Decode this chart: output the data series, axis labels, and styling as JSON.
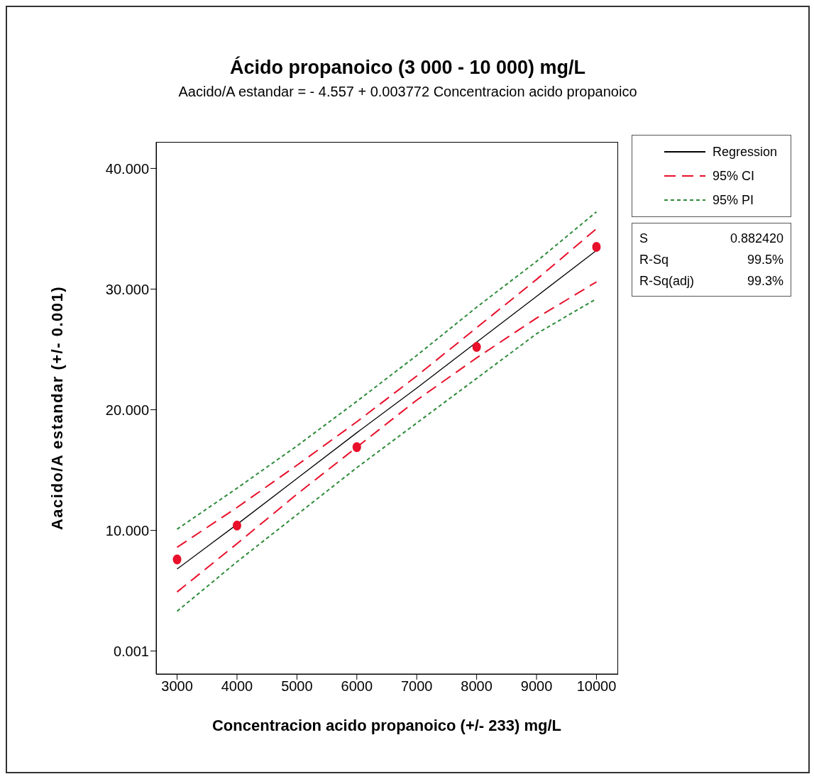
{
  "chart_data": {
    "type": "line",
    "title": "Ácido propanoico (3 000 - 10 000) mg/L",
    "subtitle": "Aacido/A estandar =  - 4.557 + 0.003772 Concentracion acido propanoico",
    "xlabel": "Concentracion acido propanoico (+/- 233) mg/L",
    "ylabel": "Aacido/A estandar (+/- 0.001)",
    "xlim": [
      2650,
      10350
    ],
    "xticks": [
      3000,
      4000,
      5000,
      6000,
      7000,
      8000,
      9000,
      10000
    ],
    "ylim": [
      -1.9,
      42.2
    ],
    "yticks": [
      0.001,
      {
        "value": 10,
        "label": "10.000"
      },
      {
        "value": 20,
        "label": "20.000"
      },
      {
        "value": 30,
        "label": "30.000"
      },
      {
        "value": 40,
        "label": "40.000"
      }
    ],
    "legend": "top right",
    "marker": "none",
    "series": [
      {
        "name": "Regression",
        "color": "#000000",
        "line_style": "solid",
        "x": [
          3000,
          4000,
          5000,
          6000,
          7000,
          8000,
          9000,
          10000
        ],
        "values": [
          6.8,
          10.5,
          14.3,
          18.1,
          21.8,
          25.6,
          29.4,
          33.2
        ]
      },
      {
        "name": "95% CI",
        "color": "#e8102a",
        "line_style": "dashed",
        "x": [
          3000,
          4000,
          5000,
          6000,
          7000,
          8000,
          9000,
          10000
        ],
        "values": [
          8.6,
          11.9,
          15.4,
          19.0,
          22.8,
          26.8,
          30.8,
          35.0
        ]
      },
      {
        "color": "#e8102a",
        "line_style": "dashed",
        "x": [
          3000,
          4000,
          5000,
          6000,
          7000,
          8000,
          9000,
          10000
        ],
        "values": [
          4.9,
          8.9,
          13.0,
          16.9,
          20.8,
          24.3,
          27.6,
          30.6
        ]
      },
      {
        "name": "95% PI",
        "color": "#2e8b3a",
        "line_style": "dotted",
        "x": [
          3000,
          4000,
          5000,
          6000,
          7000,
          8000,
          9000,
          10000
        ],
        "values": [
          10.1,
          13.5,
          17.0,
          20.7,
          24.5,
          28.5,
          32.3,
          36.4
        ]
      },
      {
        "color": "#2e8b3a",
        "line_style": "dotted",
        "x": [
          3000,
          4000,
          5000,
          6000,
          7000,
          8000,
          9000,
          10000
        ],
        "values": [
          3.3,
          7.4,
          11.3,
          15.2,
          18.9,
          22.6,
          26.3,
          29.2
        ]
      },
      {
        "type": "scatter",
        "marker": "circle",
        "color": "#e8102a",
        "x": [
          3000,
          4000,
          6000,
          8000,
          10000
        ],
        "values": [
          7.6,
          10.4,
          16.9,
          25.2,
          33.5
        ]
      }
    ],
    "annotations": [
      "S 0.882420",
      "R-Sq 99.5%",
      "R-Sq(adj) 99.3%"
    ]
  }
}
